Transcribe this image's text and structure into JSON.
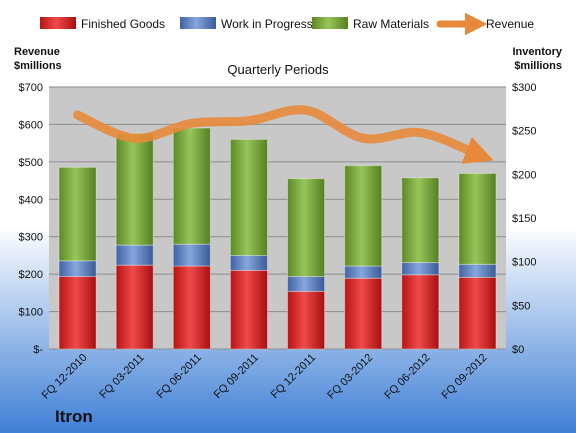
{
  "chart_data": {
    "type": "bar",
    "stacked": true,
    "title": "Quarterly Periods",
    "categories": [
      "FQ 12-2010",
      "FQ 03-2011",
      "FQ 06-2011",
      "FQ 09-2011",
      "FQ 12-2011",
      "FQ 03-2012",
      "FQ 06-2012",
      "FQ 09-2012"
    ],
    "series": [
      {
        "name": "Finished Goods",
        "axis": "right",
        "color": "#d92a2a",
        "values": [
          83,
          96,
          95,
          90,
          66,
          81,
          85,
          82
        ]
      },
      {
        "name": "Work in Progress",
        "axis": "right",
        "color": "#5b7fc0",
        "values": [
          18,
          23,
          25,
          17,
          17,
          14,
          14,
          15
        ]
      },
      {
        "name": "Raw Materials",
        "axis": "right",
        "color": "#77a83a",
        "values": [
          107,
          128,
          133,
          133,
          112,
          115,
          97,
          104
        ]
      },
      {
        "name": "Revenue",
        "axis": "left",
        "type": "line",
        "color": "#e8893a",
        "values": [
          625,
          563,
          603,
          610,
          638,
          563,
          578,
          520
        ]
      }
    ],
    "left_axis": {
      "label": "Revenue\n$millions",
      "min": 0,
      "max": 700,
      "ticks": [
        0,
        100,
        200,
        300,
        400,
        500,
        600,
        700
      ],
      "tick_labels": [
        "$-",
        "$100",
        "$200",
        "$300",
        "$400",
        "$500",
        "$600",
        "$700"
      ]
    },
    "right_axis": {
      "label": "Inventory\n$millions",
      "min": 0,
      "max": 300,
      "ticks": [
        0,
        50,
        100,
        150,
        200,
        250,
        300
      ],
      "tick_labels": [
        "$0",
        "$50",
        "$100",
        "$150",
        "$200",
        "$250",
        "$300"
      ]
    },
    "legend_position": "top",
    "grid": true
  },
  "brand": "Itron",
  "colors": {
    "plot_background": "#c8c8c8",
    "page_top": "#ffffff",
    "page_bottom": "#3f7fd6",
    "gridline": "#8c8c8c"
  }
}
